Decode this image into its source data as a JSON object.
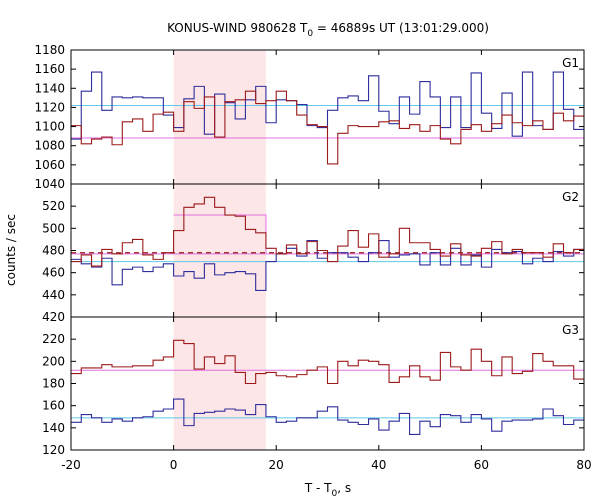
{
  "chart_data": {
    "type": "line",
    "title_main": "KONUS-WIND 980628 T",
    "title_sub": "0",
    "title_tail": " = 46889s UT (13:01:29.000)",
    "xlabel_main": "T - T",
    "xlabel_sub": "0",
    "xlabel_tail": ", s",
    "ylabel": "counts / sec",
    "xlim": [
      -20,
      80
    ],
    "x_ticks": [
      -20,
      0,
      20,
      40,
      60,
      80
    ],
    "highlight_interval": [
      0,
      18
    ],
    "colors": {
      "blue": "#2e2e9c",
      "red": "#9c1a1a",
      "cyan": "#60c8e8",
      "violet": "#e070e0",
      "highlight": "#fde6e8"
    },
    "bin_edges": [
      -20,
      -18,
      -16,
      -14,
      -12,
      -10,
      -8,
      -6,
      -4,
      -2,
      0,
      2,
      4,
      6,
      8,
      10,
      12,
      14,
      16,
      18,
      20,
      22,
      24,
      26,
      28,
      30,
      32,
      34,
      36,
      38,
      40,
      42,
      44,
      46,
      48,
      50,
      52,
      54,
      56,
      58,
      60,
      62,
      64,
      66,
      68,
      70,
      72,
      74,
      76,
      78,
      80
    ],
    "panels": [
      {
        "label": "G1",
        "ylim": [
          1040,
          1180
        ],
        "y_ticks": [
          1040,
          1060,
          1080,
          1100,
          1120,
          1140,
          1160,
          1180
        ],
        "background_levels": [
          {
            "color": "cyan",
            "value": 1122
          },
          {
            "color": "violet",
            "value": 1088
          }
        ],
        "series": [
          {
            "color": "blue",
            "values": [
              1087,
              1137,
              1157,
              1117,
              1131,
              1130,
              1131,
              1130,
              1130,
              1112,
              1099,
              1129,
              1142,
              1092,
              1134,
              1125,
              1108,
              1128,
              1142,
              1104,
              1128,
              1127,
              1123,
              1101,
              1099,
              1117,
              1130,
              1132,
              1127,
              1153,
              1116,
              1103,
              1131,
              1113,
              1147,
              1131,
              1099,
              1131,
              1099,
              1156,
              1114,
              1098,
              1135,
              1090,
              1157,
              1101,
              1097,
              1157,
              1118,
              1097
            ]
          },
          {
            "color": "red",
            "values": [
              1101,
              1082,
              1087,
              1089,
              1081,
              1105,
              1108,
              1095,
              1113,
              1115,
              1095,
              1126,
              1119,
              1131,
              1089,
              1126,
              1128,
              1137,
              1124,
              1127,
              1137,
              1127,
              1112,
              1102,
              1100,
              1061,
              1093,
              1101,
              1100,
              1100,
              1105,
              1106,
              1098,
              1102,
              1095,
              1101,
              1087,
              1082,
              1097,
              1102,
              1095,
              1103,
              1112,
              1104,
              1101,
              1106,
              1097,
              1114,
              1106,
              1111
            ]
          }
        ]
      },
      {
        "label": "G2",
        "ylim": [
          420,
          540
        ],
        "y_ticks": [
          420,
          440,
          460,
          480,
          500,
          520
        ],
        "background_levels": [
          {
            "color": "cyan",
            "value": 470
          },
          {
            "color": "violet",
            "value": 477
          }
        ],
        "fitted_level": {
          "color": "red",
          "value": 478
        },
        "source_level": {
          "color": "violet",
          "value": 512,
          "interval": [
            0,
            18
          ]
        },
        "series": [
          {
            "color": "blue",
            "values": [
              472,
              468,
              465,
              473,
              449,
              463,
              465,
              461,
              465,
              468,
              457,
              461,
              455,
              468,
              458,
              460,
              461,
              459,
              444,
              470,
              477,
              482,
              475,
              489,
              473,
              478,
              478,
              474,
              470,
              478,
              489,
              474,
              476,
              477,
              467,
              478,
              467,
              482,
              467,
              476,
              465,
              481,
              478,
              479,
              468,
              473,
              470,
              479,
              475,
              481
            ]
          },
          {
            "color": "red",
            "values": [
              470,
              476,
              466,
              481,
              477,
              487,
              490,
              476,
              472,
              478,
              498,
              519,
              522,
              528,
              519,
              512,
              511,
              499,
              496,
              482,
              477,
              485,
              477,
              488,
              480,
              470,
              484,
              498,
              483,
              495,
              474,
              477,
              500,
              487,
              487,
              481,
              475,
              486,
              476,
              475,
              482,
              488,
              477,
              481,
              478,
              478,
              474,
              486,
              478,
              481
            ]
          }
        ]
      },
      {
        "label": "G3",
        "ylim": [
          120,
          240
        ],
        "y_ticks": [
          120,
          140,
          160,
          180,
          200,
          220
        ],
        "background_levels": [
          {
            "color": "cyan",
            "value": 149
          },
          {
            "color": "violet",
            "value": 192
          }
        ],
        "series": [
          {
            "color": "blue",
            "values": [
              145,
              152,
              149,
              145,
              148,
              146,
              149,
              150,
              155,
              157,
              166,
              142,
              153,
              154,
              155,
              157,
              156,
              152,
              161,
              150,
              145,
              146,
              149,
              149,
              155,
              159,
              147,
              145,
              143,
              148,
              138,
              146,
              153,
              134,
              146,
              141,
              152,
              151,
              145,
              152,
              148,
              137,
              146,
              147,
              147,
              148,
              157,
              151,
              143,
              147
            ]
          },
          {
            "color": "red",
            "values": [
              189,
              194,
              194,
              197,
              195,
              195,
              196,
              196,
              201,
              204,
              219,
              216,
              193,
              204,
              198,
              205,
              190,
              180,
              189,
              190,
              187,
              186,
              188,
              192,
              195,
              180,
              200,
              196,
              201,
              200,
              197,
              181,
              186,
              196,
              186,
              183,
              208,
              195,
              192,
              211,
              200,
              187,
              204,
              189,
              191,
              207,
              200,
              196,
              196,
              184
            ]
          }
        ]
      }
    ]
  }
}
